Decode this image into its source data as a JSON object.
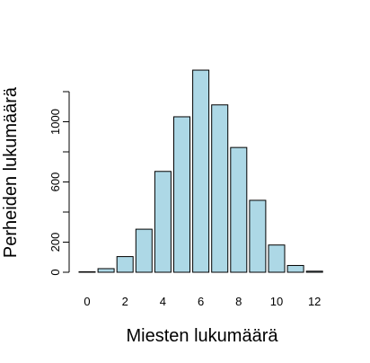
{
  "chart_data": {
    "type": "bar",
    "title": "",
    "xlabel": "Miesten lukumäärä",
    "ylabel": "Perheiden lukumäärä",
    "categories": [
      "0",
      "1",
      "2",
      "3",
      "4",
      "5",
      "6",
      "7",
      "8",
      "9",
      "10",
      "11",
      "12"
    ],
    "values": [
      3,
      24,
      104,
      286,
      670,
      1033,
      1343,
      1112,
      829,
      478,
      181,
      45,
      7
    ],
    "x_tick_labels": [
      "0",
      "2",
      "4",
      "6",
      "8",
      "10",
      "12"
    ],
    "y_ticks": [
      0,
      200,
      400,
      600,
      800,
      1000,
      1200
    ],
    "y_tick_labels": [
      "0",
      "200",
      "",
      "600",
      "",
      "1000",
      ""
    ],
    "ylim": [
      0,
      1420
    ],
    "bar_color": "#add8e6",
    "grid": false,
    "legend": "none"
  }
}
